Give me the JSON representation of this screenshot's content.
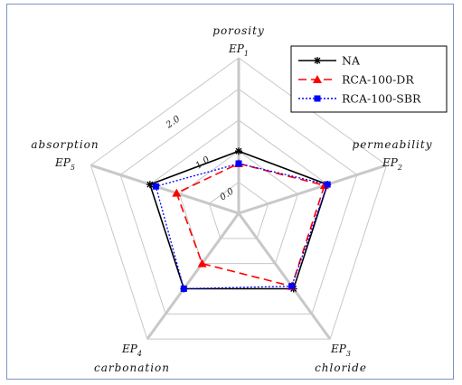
{
  "chart_data": {
    "type": "radar",
    "axes": [
      {
        "name": "porosity",
        "code": "EP",
        "sub": "1"
      },
      {
        "name": "permeability",
        "code": "EP",
        "sub": "2"
      },
      {
        "name": "chloride",
        "code": "EP",
        "sub": "3"
      },
      {
        "name": "carbonation",
        "code": "EP",
        "sub": "4"
      },
      {
        "name": "absorption",
        "code": "EP",
        "sub": "5"
      }
    ],
    "tick_labels": [
      "0.0",
      "1.0",
      "2.0"
    ],
    "range": [
      0,
      2.5
    ],
    "series": [
      {
        "name": "NA",
        "color": "#000000",
        "dash": "solid",
        "marker": "star",
        "values": [
          1.0,
          1.5,
          1.5,
          1.5,
          1.5
        ]
      },
      {
        "name": "RCA-100-DR",
        "color": "#ff0000",
        "dash": "dashed",
        "marker": "triangle",
        "values": [
          0.8,
          1.45,
          1.45,
          1.0,
          1.05
        ]
      },
      {
        "name": "RCA-100-SBR",
        "color": "#0000ff",
        "dash": "dotted",
        "marker": "square",
        "values": [
          0.8,
          1.5,
          1.45,
          1.5,
          1.4
        ]
      }
    ]
  }
}
